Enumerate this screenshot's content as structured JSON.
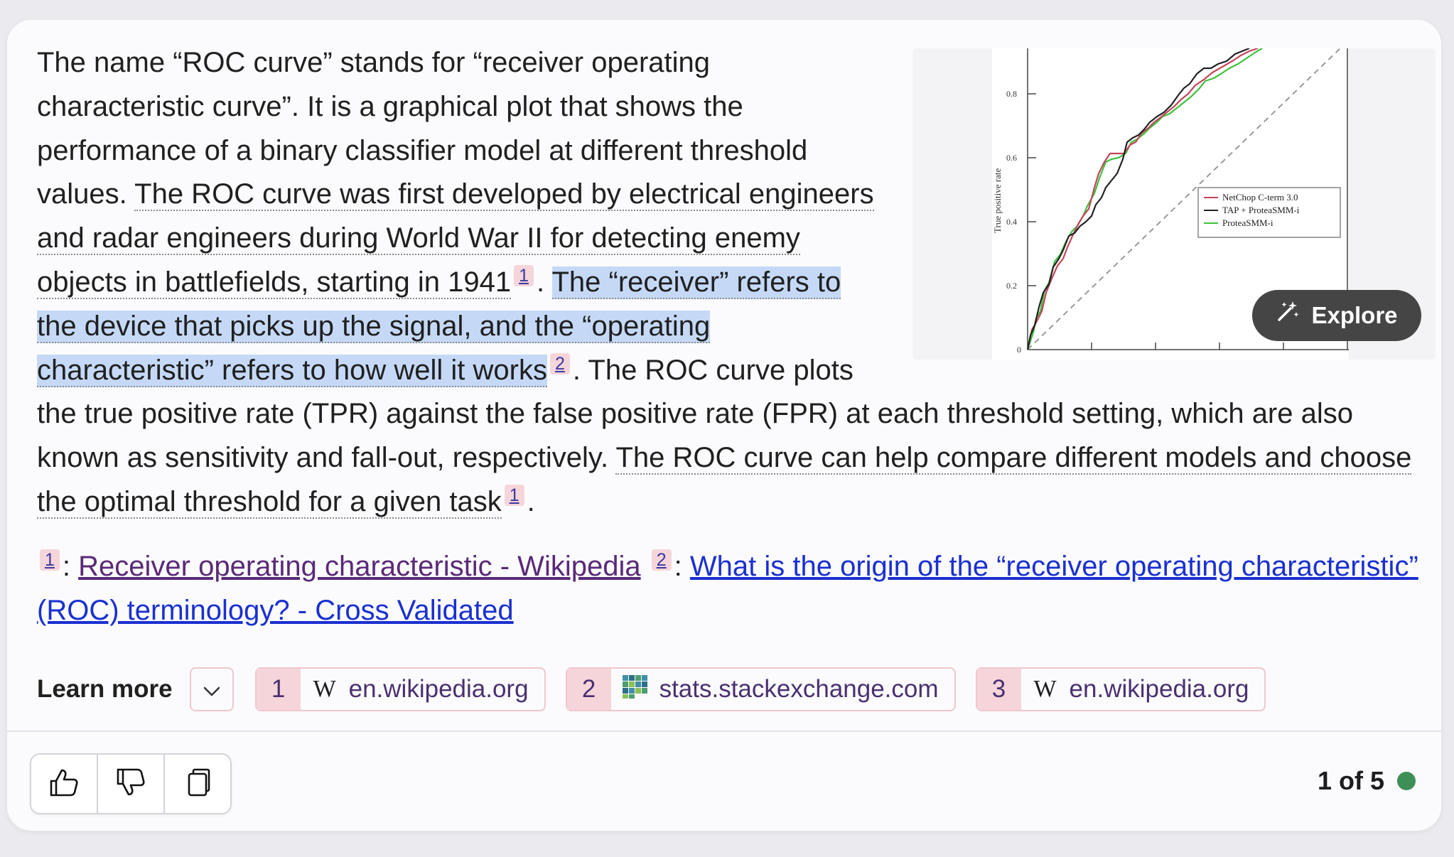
{
  "answer": {
    "s1": "The name “ROC curve” stands for “receiver operating characteristic curve”. It is a graphical plot that shows the performance of a binary classifier model at different threshold values.",
    "s2": "The ROC curve was first developed by electrical engineers and radar engineers during World War II for detecting enemy objects in battlefields, starting in 1941",
    "s2_ref": "1",
    "s3": "The “receiver” refers to the device that picks up the signal, and the “operating characteristic” refers to how well it works",
    "s3_ref": "2",
    "s4": "The ROC curve plots the true positive rate (TPR) against the false positive rate (FPR) at each threshold setting, which are also known as sensitivity and fall-out, respectively.",
    "s5": "The ROC curve can help compare different models and choose the optimal threshold for a given task",
    "s5_ref": "1",
    "dot": ".",
    "space": " "
  },
  "image": {
    "explore_label": "Explore",
    "ylabel": "True positive rate",
    "yticks": [
      "0.8",
      "0.6",
      "0.4",
      "0.2",
      "0"
    ],
    "legend": [
      {
        "name": "NetChop C-term 3.0",
        "color": "#c2455a"
      },
      {
        "name": "TAP + ProteaSMM-i",
        "color": "#222222"
      },
      {
        "name": "ProteaSMM-i",
        "color": "#3cc23c"
      }
    ]
  },
  "references": {
    "sep": ":",
    "items": [
      {
        "num": "1",
        "title": "Receiver operating characteristic - Wikipedia",
        "visited": true
      },
      {
        "num": "2",
        "title": "What is the origin of the “receiver operating characteristic” (ROC) terminology? - Cross Validated",
        "visited": false
      }
    ]
  },
  "learn_more": {
    "label": "Learn more",
    "chips": [
      {
        "num": "1",
        "icon": "wikipedia-icon",
        "glyph": "W",
        "domain": "en.wikipedia.org"
      },
      {
        "num": "2",
        "icon": "stackexchange-icon",
        "glyph": "",
        "domain": "stats.stackexchange.com"
      },
      {
        "num": "3",
        "icon": "wikipedia-icon",
        "glyph": "W",
        "domain": "en.wikipedia.org"
      }
    ]
  },
  "pager": {
    "text": "1 of 5",
    "status_color": "#3e8f56"
  },
  "colors": {
    "highlight": "#c5d9f7",
    "citation_bg": "#f5d5da",
    "visited_link": "#5a2a78",
    "link": "#1a30d0"
  }
}
